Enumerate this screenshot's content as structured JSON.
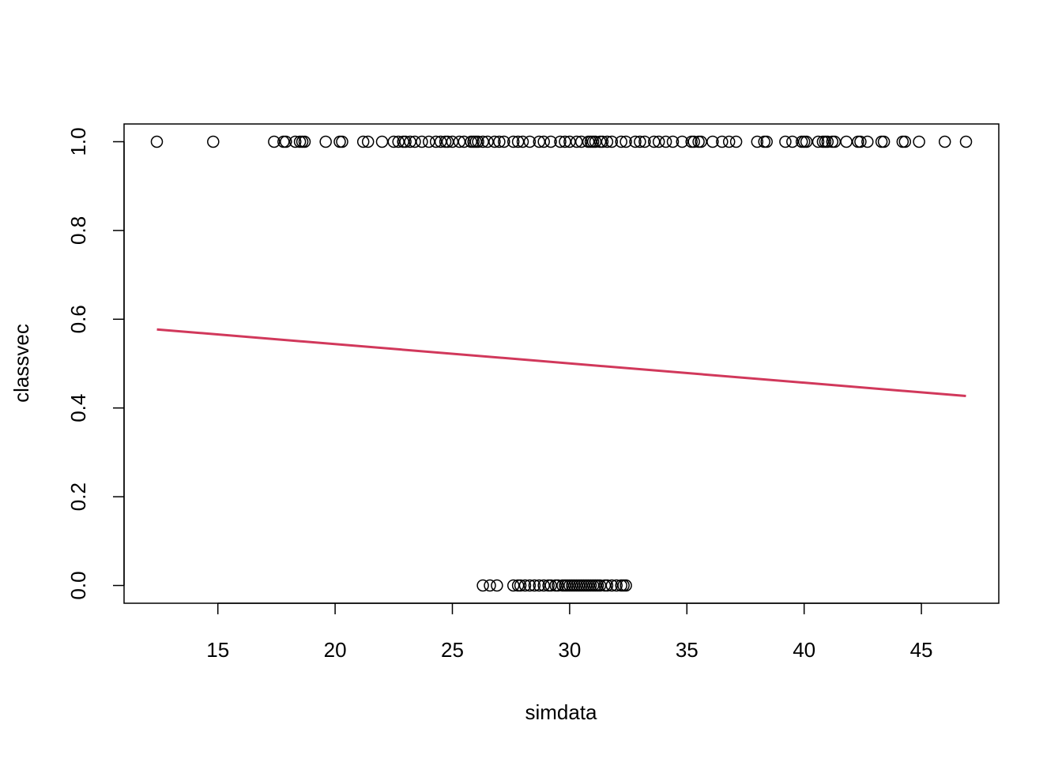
{
  "chart_data": {
    "type": "scatter",
    "title": "",
    "xlabel": "simdata",
    "ylabel": "classvec",
    "xlim": [
      11.0,
      48.3
    ],
    "ylim": [
      -0.04,
      1.04
    ],
    "xticks": [
      15,
      20,
      25,
      30,
      35,
      40,
      45
    ],
    "yticks": [
      0.0,
      0.2,
      0.4,
      0.6,
      0.8,
      1.0
    ],
    "ytick_labels": [
      "0.0",
      "0.2",
      "0.4",
      "0.6",
      "0.8",
      "1.0"
    ],
    "grid": false,
    "legend": "none",
    "point_color": "#000000",
    "line_color": "#D1385B",
    "series": [
      {
        "values": [
          {
            "x": 12.4,
            "y": 1
          },
          {
            "x": 14.8,
            "y": 1
          },
          {
            "x": 17.4,
            "y": 1
          },
          {
            "x": 17.8,
            "y": 1
          },
          {
            "x": 17.9,
            "y": 1
          },
          {
            "x": 18.3,
            "y": 1
          },
          {
            "x": 18.5,
            "y": 1
          },
          {
            "x": 18.6,
            "y": 1
          },
          {
            "x": 18.7,
            "y": 1
          },
          {
            "x": 19.6,
            "y": 1
          },
          {
            "x": 20.2,
            "y": 1
          },
          {
            "x": 20.3,
            "y": 1
          },
          {
            "x": 21.2,
            "y": 1
          },
          {
            "x": 21.4,
            "y": 1
          },
          {
            "x": 22.0,
            "y": 1
          },
          {
            "x": 22.5,
            "y": 1
          },
          {
            "x": 22.7,
            "y": 1
          },
          {
            "x": 22.9,
            "y": 1
          },
          {
            "x": 23.0,
            "y": 1
          },
          {
            "x": 23.2,
            "y": 1
          },
          {
            "x": 23.4,
            "y": 1
          },
          {
            "x": 23.7,
            "y": 1
          },
          {
            "x": 24.0,
            "y": 1
          },
          {
            "x": 24.3,
            "y": 1
          },
          {
            "x": 24.5,
            "y": 1
          },
          {
            "x": 24.7,
            "y": 1
          },
          {
            "x": 24.8,
            "y": 1
          },
          {
            "x": 25.0,
            "y": 1
          },
          {
            "x": 25.3,
            "y": 1
          },
          {
            "x": 25.5,
            "y": 1
          },
          {
            "x": 25.8,
            "y": 1
          },
          {
            "x": 25.9,
            "y": 1
          },
          {
            "x": 26.0,
            "y": 1
          },
          {
            "x": 26.1,
            "y": 1
          },
          {
            "x": 26.3,
            "y": 1
          },
          {
            "x": 26.5,
            "y": 1
          },
          {
            "x": 26.8,
            "y": 1
          },
          {
            "x": 27.0,
            "y": 1
          },
          {
            "x": 27.2,
            "y": 1
          },
          {
            "x": 27.6,
            "y": 1
          },
          {
            "x": 27.8,
            "y": 1
          },
          {
            "x": 28.0,
            "y": 1
          },
          {
            "x": 28.3,
            "y": 1
          },
          {
            "x": 28.7,
            "y": 1
          },
          {
            "x": 28.9,
            "y": 1
          },
          {
            "x": 29.2,
            "y": 1
          },
          {
            "x": 29.6,
            "y": 1
          },
          {
            "x": 29.8,
            "y": 1
          },
          {
            "x": 30.0,
            "y": 1
          },
          {
            "x": 30.3,
            "y": 1
          },
          {
            "x": 30.5,
            "y": 1
          },
          {
            "x": 30.8,
            "y": 1
          },
          {
            "x": 30.9,
            "y": 1
          },
          {
            "x": 31.0,
            "y": 1
          },
          {
            "x": 31.1,
            "y": 1
          },
          {
            "x": 31.3,
            "y": 1
          },
          {
            "x": 31.4,
            "y": 1
          },
          {
            "x": 31.6,
            "y": 1
          },
          {
            "x": 31.8,
            "y": 1
          },
          {
            "x": 32.2,
            "y": 1
          },
          {
            "x": 32.4,
            "y": 1
          },
          {
            "x": 32.8,
            "y": 1
          },
          {
            "x": 33.0,
            "y": 1
          },
          {
            "x": 33.2,
            "y": 1
          },
          {
            "x": 33.6,
            "y": 1
          },
          {
            "x": 33.8,
            "y": 1
          },
          {
            "x": 34.1,
            "y": 1
          },
          {
            "x": 34.4,
            "y": 1
          },
          {
            "x": 34.8,
            "y": 1
          },
          {
            "x": 35.2,
            "y": 1
          },
          {
            "x": 35.3,
            "y": 1
          },
          {
            "x": 35.5,
            "y": 1
          },
          {
            "x": 35.6,
            "y": 1
          },
          {
            "x": 36.1,
            "y": 1
          },
          {
            "x": 36.5,
            "y": 1
          },
          {
            "x": 36.8,
            "y": 1
          },
          {
            "x": 37.1,
            "y": 1
          },
          {
            "x": 38.0,
            "y": 1
          },
          {
            "x": 38.3,
            "y": 1
          },
          {
            "x": 38.4,
            "y": 1
          },
          {
            "x": 39.2,
            "y": 1
          },
          {
            "x": 39.5,
            "y": 1
          },
          {
            "x": 39.9,
            "y": 1
          },
          {
            "x": 40.0,
            "y": 1
          },
          {
            "x": 40.1,
            "y": 1
          },
          {
            "x": 40.6,
            "y": 1
          },
          {
            "x": 40.8,
            "y": 1
          },
          {
            "x": 40.9,
            "y": 1
          },
          {
            "x": 41.0,
            "y": 1
          },
          {
            "x": 41.2,
            "y": 1
          },
          {
            "x": 41.3,
            "y": 1
          },
          {
            "x": 41.8,
            "y": 1
          },
          {
            "x": 42.3,
            "y": 1
          },
          {
            "x": 42.4,
            "y": 1
          },
          {
            "x": 42.7,
            "y": 1
          },
          {
            "x": 43.3,
            "y": 1
          },
          {
            "x": 43.4,
            "y": 1
          },
          {
            "x": 44.2,
            "y": 1
          },
          {
            "x": 44.3,
            "y": 1
          },
          {
            "x": 44.9,
            "y": 1
          },
          {
            "x": 46.0,
            "y": 1
          },
          {
            "x": 46.9,
            "y": 1
          },
          {
            "x": 26.3,
            "y": 0
          },
          {
            "x": 26.6,
            "y": 0
          },
          {
            "x": 26.9,
            "y": 0
          },
          {
            "x": 27.6,
            "y": 0
          },
          {
            "x": 27.8,
            "y": 0
          },
          {
            "x": 27.9,
            "y": 0
          },
          {
            "x": 28.1,
            "y": 0
          },
          {
            "x": 28.3,
            "y": 0
          },
          {
            "x": 28.5,
            "y": 0
          },
          {
            "x": 28.7,
            "y": 0
          },
          {
            "x": 28.9,
            "y": 0
          },
          {
            "x": 29.1,
            "y": 0
          },
          {
            "x": 29.2,
            "y": 0
          },
          {
            "x": 29.4,
            "y": 0
          },
          {
            "x": 29.5,
            "y": 0
          },
          {
            "x": 29.7,
            "y": 0
          },
          {
            "x": 29.8,
            "y": 0
          },
          {
            "x": 29.9,
            "y": 0
          },
          {
            "x": 30.0,
            "y": 0
          },
          {
            "x": 30.1,
            "y": 0
          },
          {
            "x": 30.2,
            "y": 0
          },
          {
            "x": 30.3,
            "y": 0
          },
          {
            "x": 30.4,
            "y": 0
          },
          {
            "x": 30.5,
            "y": 0
          },
          {
            "x": 30.6,
            "y": 0
          },
          {
            "x": 30.7,
            "y": 0
          },
          {
            "x": 30.8,
            "y": 0
          },
          {
            "x": 30.9,
            "y": 0
          },
          {
            "x": 31.0,
            "y": 0
          },
          {
            "x": 31.1,
            "y": 0
          },
          {
            "x": 31.2,
            "y": 0
          },
          {
            "x": 31.3,
            "y": 0
          },
          {
            "x": 31.5,
            "y": 0
          },
          {
            "x": 31.6,
            "y": 0
          },
          {
            "x": 31.8,
            "y": 0
          },
          {
            "x": 32.0,
            "y": 0
          },
          {
            "x": 32.2,
            "y": 0
          },
          {
            "x": 32.3,
            "y": 0
          },
          {
            "x": 32.4,
            "y": 0
          }
        ]
      }
    ],
    "fit_line": [
      {
        "x": 12.4,
        "y": 0.577
      },
      {
        "x": 46.9,
        "y": 0.427
      }
    ]
  }
}
